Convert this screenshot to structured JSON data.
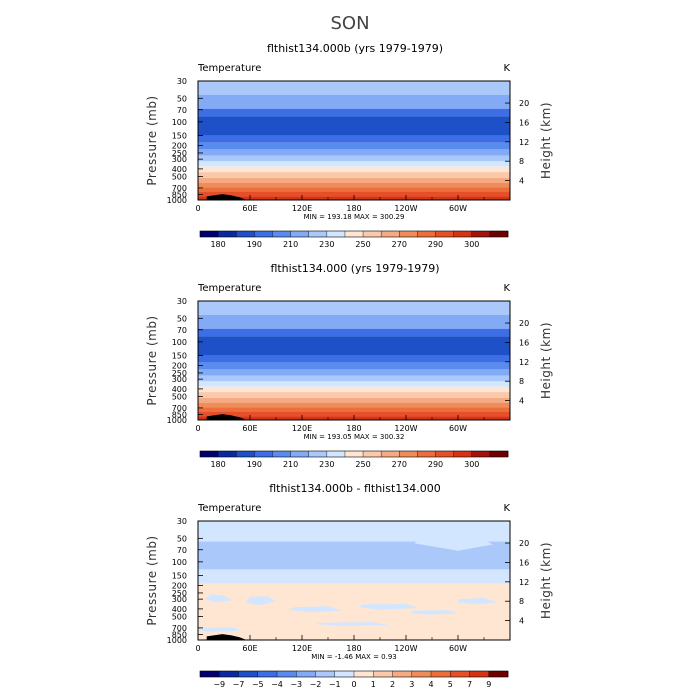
{
  "figure": {
    "title": "SON"
  },
  "chart_data": [
    {
      "type": "heatmap",
      "title": "flthist134.000b (yrs 1979-1979)",
      "variable": "Temperature",
      "units": "K",
      "ylabel": "Pressure (mb)",
      "ylabel_right": "Height (km)",
      "pressure_ticks": [
        "30",
        "50",
        "70",
        "100",
        "150",
        "200",
        "250",
        "300",
        "400",
        "500",
        "700",
        "850",
        "1000"
      ],
      "height_ticks": [
        "20",
        "16",
        "12",
        "8",
        "4"
      ],
      "height_values_km": [
        20,
        16,
        12,
        8,
        4
      ],
      "lon_ticks": [
        "0",
        "60E",
        "120E",
        "180",
        "120W",
        "60W"
      ],
      "lon_values": [
        0,
        60,
        120,
        180,
        240,
        300
      ],
      "xlim": [
        0,
        360
      ],
      "ylim_mb": [
        1000,
        30
      ],
      "stats": "MIN = 193.18   MAX = 300.29",
      "min": 193.18,
      "max": 300.29,
      "colorbar_labels": [
        "180",
        "190",
        "210",
        "230",
        "250",
        "270",
        "290",
        "300"
      ],
      "colorbar_colors": [
        "#00006e",
        "#0a28a0",
        "#1e50c8",
        "#3c6ee6",
        "#5a8cf0",
        "#82aaf5",
        "#aac8fa",
        "#d2e6ff",
        "#ffe6d2",
        "#fac8aa",
        "#f5aa82",
        "#f08c5a",
        "#eb6e3c",
        "#e65028",
        "#d73214",
        "#a0140a",
        "#6e0000"
      ],
      "bands": [
        {
          "p_top": 30,
          "p_bottom": 45,
          "color": "#aac8fa"
        },
        {
          "p_top": 45,
          "p_bottom": 68,
          "color": "#82aaf5"
        },
        {
          "p_top": 68,
          "p_bottom": 85,
          "color": "#3c6ee6"
        },
        {
          "p_top": 85,
          "p_bottom": 150,
          "color": "#1e50c8"
        },
        {
          "p_top": 150,
          "p_bottom": 185,
          "color": "#3c6ee6"
        },
        {
          "p_top": 185,
          "p_bottom": 225,
          "color": "#5a8cf0"
        },
        {
          "p_top": 225,
          "p_bottom": 270,
          "color": "#82aaf5"
        },
        {
          "p_top": 270,
          "p_bottom": 320,
          "color": "#aac8fa"
        },
        {
          "p_top": 320,
          "p_bottom": 375,
          "color": "#d2e6ff"
        },
        {
          "p_top": 375,
          "p_bottom": 440,
          "color": "#ffe6d2"
        },
        {
          "p_top": 440,
          "p_bottom": 520,
          "color": "#fac8aa"
        },
        {
          "p_top": 520,
          "p_bottom": 600,
          "color": "#f5aa82"
        },
        {
          "p_top": 600,
          "p_bottom": 690,
          "color": "#f08c5a"
        },
        {
          "p_top": 690,
          "p_bottom": 790,
          "color": "#eb6e3c"
        },
        {
          "p_top": 790,
          "p_bottom": 900,
          "color": "#e65028"
        },
        {
          "p_top": 900,
          "p_bottom": 1000,
          "color": "#d73214"
        }
      ],
      "terrain": [
        [
          10,
          900
        ],
        [
          28,
          840
        ],
        [
          38,
          870
        ],
        [
          48,
          920
        ],
        [
          56,
          1000
        ]
      ]
    },
    {
      "type": "heatmap",
      "title": "flthist134.000 (yrs 1979-1979)",
      "variable": "Temperature",
      "units": "K",
      "ylabel": "Pressure (mb)",
      "ylabel_right": "Height (km)",
      "pressure_ticks": [
        "30",
        "50",
        "70",
        "100",
        "150",
        "200",
        "250",
        "300",
        "400",
        "500",
        "700",
        "850",
        "1000"
      ],
      "height_ticks": [
        "20",
        "16",
        "12",
        "8",
        "4"
      ],
      "height_values_km": [
        20,
        16,
        12,
        8,
        4
      ],
      "lon_ticks": [
        "0",
        "60E",
        "120E",
        "180",
        "120W",
        "60W"
      ],
      "lon_values": [
        0,
        60,
        120,
        180,
        240,
        300
      ],
      "xlim": [
        0,
        360
      ],
      "ylim_mb": [
        1000,
        30
      ],
      "stats": "MIN = 193.05   MAX = 300.32",
      "min": 193.05,
      "max": 300.32,
      "colorbar_labels": [
        "180",
        "190",
        "210",
        "230",
        "250",
        "270",
        "290",
        "300"
      ],
      "colorbar_colors": [
        "#00006e",
        "#0a28a0",
        "#1e50c8",
        "#3c6ee6",
        "#5a8cf0",
        "#82aaf5",
        "#aac8fa",
        "#d2e6ff",
        "#ffe6d2",
        "#fac8aa",
        "#f5aa82",
        "#f08c5a",
        "#eb6e3c",
        "#e65028",
        "#d73214",
        "#a0140a",
        "#6e0000"
      ],
      "bands": [
        {
          "p_top": 30,
          "p_bottom": 45,
          "color": "#aac8fa"
        },
        {
          "p_top": 45,
          "p_bottom": 68,
          "color": "#82aaf5"
        },
        {
          "p_top": 68,
          "p_bottom": 85,
          "color": "#3c6ee6"
        },
        {
          "p_top": 85,
          "p_bottom": 150,
          "color": "#1e50c8"
        },
        {
          "p_top": 150,
          "p_bottom": 185,
          "color": "#3c6ee6"
        },
        {
          "p_top": 185,
          "p_bottom": 225,
          "color": "#5a8cf0"
        },
        {
          "p_top": 225,
          "p_bottom": 270,
          "color": "#82aaf5"
        },
        {
          "p_top": 270,
          "p_bottom": 320,
          "color": "#aac8fa"
        },
        {
          "p_top": 320,
          "p_bottom": 375,
          "color": "#d2e6ff"
        },
        {
          "p_top": 375,
          "p_bottom": 440,
          "color": "#ffe6d2"
        },
        {
          "p_top": 440,
          "p_bottom": 520,
          "color": "#fac8aa"
        },
        {
          "p_top": 520,
          "p_bottom": 600,
          "color": "#f5aa82"
        },
        {
          "p_top": 600,
          "p_bottom": 690,
          "color": "#f08c5a"
        },
        {
          "p_top": 690,
          "p_bottom": 790,
          "color": "#eb6e3c"
        },
        {
          "p_top": 790,
          "p_bottom": 900,
          "color": "#e65028"
        },
        {
          "p_top": 900,
          "p_bottom": 1000,
          "color": "#d73214"
        }
      ],
      "terrain": [
        [
          10,
          900
        ],
        [
          28,
          840
        ],
        [
          38,
          870
        ],
        [
          48,
          920
        ],
        [
          56,
          1000
        ]
      ]
    },
    {
      "type": "heatmap",
      "title": "flthist134.000b - flthist134.000",
      "variable": "Temperature",
      "units": "K",
      "ylabel": "Pressure (mb)",
      "ylabel_right": "Height (km)",
      "pressure_ticks": [
        "30",
        "50",
        "70",
        "100",
        "150",
        "200",
        "250",
        "300",
        "400",
        "500",
        "700",
        "850",
        "1000"
      ],
      "height_ticks": [
        "20",
        "16",
        "12",
        "8",
        "4"
      ],
      "height_values_km": [
        20,
        16,
        12,
        8,
        4
      ],
      "lon_ticks": [
        "0",
        "60E",
        "120E",
        "180",
        "120W",
        "60W"
      ],
      "lon_values": [
        0,
        60,
        120,
        180,
        240,
        300
      ],
      "xlim": [
        0,
        360
      ],
      "ylim_mb": [
        1000,
        30
      ],
      "stats": "MIN = -1.46   MAX = 0.93",
      "min": -1.46,
      "max": 0.93,
      "colorbar_labels": [
        "−9",
        "−7",
        "−5",
        "−4",
        "−3",
        "−2",
        "−1",
        "0",
        "1",
        "2",
        "3",
        "4",
        "5",
        "7",
        "9"
      ],
      "colorbar_colors": [
        "#00006e",
        "#0a28a0",
        "#1e50c8",
        "#3c6ee6",
        "#5a8cf0",
        "#82aaf5",
        "#aac8fa",
        "#d2e6ff",
        "#ffe6d2",
        "#fac8aa",
        "#f5aa82",
        "#f08c5a",
        "#eb6e3c",
        "#e65028",
        "#d73214",
        "#6e0000"
      ],
      "bands": [
        {
          "p_top": 30,
          "p_bottom": 55,
          "color": "#d2e6ff"
        },
        {
          "p_top": 55,
          "p_bottom": 125,
          "color": "#aac8fa"
        },
        {
          "p_top": 125,
          "p_bottom": 190,
          "color": "#d2e6ff"
        },
        {
          "p_top": 190,
          "p_bottom": 1000,
          "color": "#ffe6d2"
        }
      ],
      "terrain": [
        [
          10,
          900
        ],
        [
          28,
          840
        ],
        [
          38,
          870
        ],
        [
          48,
          920
        ],
        [
          56,
          1000
        ]
      ]
    }
  ]
}
